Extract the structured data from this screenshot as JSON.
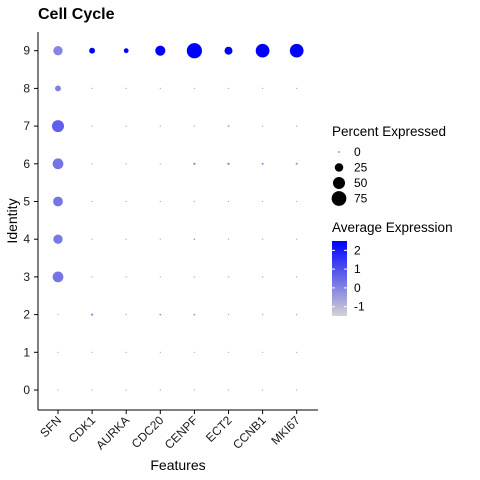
{
  "chart_data": {
    "type": "scatter",
    "title": "Cell Cycle",
    "xlabel": "Features",
    "ylabel": "Identity",
    "categories": [
      "SFN",
      "CDK1",
      "AURKA",
      "CDC20",
      "CENPF",
      "ECT2",
      "CCNB1",
      "MKI67"
    ],
    "identities": [
      "0",
      "1",
      "2",
      "3",
      "4",
      "5",
      "6",
      "7",
      "8",
      "9"
    ],
    "grid": false,
    "legend_position": "right",
    "size_legend": {
      "title": "Percent Expressed",
      "values": [
        0,
        25,
        50,
        75
      ],
      "labels": [
        "0",
        "25",
        "50",
        "75"
      ]
    },
    "color_legend": {
      "title": "Average Expression",
      "min": -1.5,
      "max": 2.5,
      "ticks": [
        2,
        1,
        0,
        -1
      ],
      "tick_labels": [
        "2",
        "1",
        "0",
        "-1"
      ],
      "low_color": "#d3d3d3",
      "high_color": "#0000ff"
    },
    "points": [
      {
        "feature": "SFN",
        "identity": "0",
        "pct": 0.5,
        "avg": -0.6
      },
      {
        "feature": "CDK1",
        "identity": "0",
        "pct": 0.3,
        "avg": -0.4
      },
      {
        "feature": "AURKA",
        "identity": "0",
        "pct": 0.3,
        "avg": -0.3
      },
      {
        "feature": "CDC20",
        "identity": "0",
        "pct": 0.3,
        "avg": -0.4
      },
      {
        "feature": "CENPF",
        "identity": "0",
        "pct": 0.3,
        "avg": -0.5
      },
      {
        "feature": "ECT2",
        "identity": "0",
        "pct": 0.3,
        "avg": -0.5
      },
      {
        "feature": "CCNB1",
        "identity": "0",
        "pct": 0.3,
        "avg": -0.4
      },
      {
        "feature": "MKI67",
        "identity": "0",
        "pct": 0.3,
        "avg": -0.5
      },
      {
        "feature": "SFN",
        "identity": "1",
        "pct": 0.5,
        "avg": -0.6
      },
      {
        "feature": "CDK1",
        "identity": "1",
        "pct": 0.3,
        "avg": -0.4
      },
      {
        "feature": "AURKA",
        "identity": "1",
        "pct": 0.3,
        "avg": -0.3
      },
      {
        "feature": "CDC20",
        "identity": "1",
        "pct": 0.3,
        "avg": -0.4
      },
      {
        "feature": "CENPF",
        "identity": "1",
        "pct": 0.3,
        "avg": -0.5
      },
      {
        "feature": "ECT2",
        "identity": "1",
        "pct": 0.3,
        "avg": -0.5
      },
      {
        "feature": "CCNB1",
        "identity": "1",
        "pct": 0.3,
        "avg": -0.4
      },
      {
        "feature": "MKI67",
        "identity": "1",
        "pct": 0.3,
        "avg": -0.5
      },
      {
        "feature": "SFN",
        "identity": "2",
        "pct": 0.5,
        "avg": -0.6
      },
      {
        "feature": "CDK1",
        "identity": "2",
        "pct": 1.5,
        "avg": 0.2
      },
      {
        "feature": "AURKA",
        "identity": "2",
        "pct": 0.3,
        "avg": -0.3
      },
      {
        "feature": "CDC20",
        "identity": "2",
        "pct": 1.0,
        "avg": -0.1
      },
      {
        "feature": "CENPF",
        "identity": "2",
        "pct": 1.0,
        "avg": -0.2
      },
      {
        "feature": "ECT2",
        "identity": "2",
        "pct": 0.5,
        "avg": -0.4
      },
      {
        "feature": "CCNB1",
        "identity": "2",
        "pct": 0.5,
        "avg": -0.3
      },
      {
        "feature": "MKI67",
        "identity": "2",
        "pct": 0.5,
        "avg": -0.3
      },
      {
        "feature": "SFN",
        "identity": "3",
        "pct": 40,
        "avg": 0.3
      },
      {
        "feature": "CDK1",
        "identity": "3",
        "pct": 0.3,
        "avg": -0.4
      },
      {
        "feature": "AURKA",
        "identity": "3",
        "pct": 0.3,
        "avg": -0.3
      },
      {
        "feature": "CDC20",
        "identity": "3",
        "pct": 0.3,
        "avg": -0.4
      },
      {
        "feature": "CENPF",
        "identity": "3",
        "pct": 0.5,
        "avg": -0.4
      },
      {
        "feature": "ECT2",
        "identity": "3",
        "pct": 0.5,
        "avg": -0.4
      },
      {
        "feature": "CCNB1",
        "identity": "3",
        "pct": 0.3,
        "avg": -0.4
      },
      {
        "feature": "MKI67",
        "identity": "3",
        "pct": 0.3,
        "avg": -0.5
      },
      {
        "feature": "SFN",
        "identity": "4",
        "pct": 30,
        "avg": 0.2
      },
      {
        "feature": "CDK1",
        "identity": "4",
        "pct": 0.3,
        "avg": -0.4
      },
      {
        "feature": "AURKA",
        "identity": "4",
        "pct": 0.3,
        "avg": -0.3
      },
      {
        "feature": "CDC20",
        "identity": "4",
        "pct": 0.3,
        "avg": -0.4
      },
      {
        "feature": "CENPF",
        "identity": "4",
        "pct": 0.8,
        "avg": -0.2
      },
      {
        "feature": "ECT2",
        "identity": "4",
        "pct": 0.5,
        "avg": -0.3
      },
      {
        "feature": "CCNB1",
        "identity": "4",
        "pct": 0.3,
        "avg": -0.4
      },
      {
        "feature": "MKI67",
        "identity": "4",
        "pct": 0.5,
        "avg": -0.4
      },
      {
        "feature": "SFN",
        "identity": "5",
        "pct": 33,
        "avg": 0.3
      },
      {
        "feature": "CDK1",
        "identity": "5",
        "pct": 0.3,
        "avg": -0.4
      },
      {
        "feature": "AURKA",
        "identity": "5",
        "pct": 0.3,
        "avg": -0.3
      },
      {
        "feature": "CDC20",
        "identity": "5",
        "pct": 0.3,
        "avg": -0.4
      },
      {
        "feature": "CENPF",
        "identity": "5",
        "pct": 0.3,
        "avg": -0.5
      },
      {
        "feature": "ECT2",
        "identity": "5",
        "pct": 0.5,
        "avg": -0.4
      },
      {
        "feature": "CCNB1",
        "identity": "5",
        "pct": 0.3,
        "avg": -0.4
      },
      {
        "feature": "MKI67",
        "identity": "5",
        "pct": 0.3,
        "avg": -0.5
      },
      {
        "feature": "SFN",
        "identity": "6",
        "pct": 40,
        "avg": 0.3
      },
      {
        "feature": "CDK1",
        "identity": "6",
        "pct": 0.5,
        "avg": -0.4
      },
      {
        "feature": "AURKA",
        "identity": "6",
        "pct": 0.3,
        "avg": -0.3
      },
      {
        "feature": "CDC20",
        "identity": "6",
        "pct": 0.5,
        "avg": -0.4
      },
      {
        "feature": "CENPF",
        "identity": "6",
        "pct": 2.0,
        "avg": -0.2
      },
      {
        "feature": "ECT2",
        "identity": "6",
        "pct": 2.0,
        "avg": -0.2
      },
      {
        "feature": "CCNB1",
        "identity": "6",
        "pct": 1.5,
        "avg": -0.2
      },
      {
        "feature": "MKI67",
        "identity": "6",
        "pct": 1.5,
        "avg": -0.3
      },
      {
        "feature": "SFN",
        "identity": "7",
        "pct": 50,
        "avg": 0.7
      },
      {
        "feature": "CDK1",
        "identity": "7",
        "pct": 0.3,
        "avg": -0.4
      },
      {
        "feature": "AURKA",
        "identity": "7",
        "pct": 0.3,
        "avg": -0.3
      },
      {
        "feature": "CDC20",
        "identity": "7",
        "pct": 0.3,
        "avg": -0.4
      },
      {
        "feature": "CENPF",
        "identity": "7",
        "pct": 0.3,
        "avg": -0.5
      },
      {
        "feature": "ECT2",
        "identity": "7",
        "pct": 1.0,
        "avg": -0.2
      },
      {
        "feature": "CCNB1",
        "identity": "7",
        "pct": 0.3,
        "avg": -0.4
      },
      {
        "feature": "MKI67",
        "identity": "7",
        "pct": 0.3,
        "avg": -0.5
      },
      {
        "feature": "SFN",
        "identity": "8",
        "pct": 12,
        "avg": 0.1
      },
      {
        "feature": "CDK1",
        "identity": "8",
        "pct": 0.3,
        "avg": -0.4
      },
      {
        "feature": "AURKA",
        "identity": "8",
        "pct": 0.3,
        "avg": -0.3
      },
      {
        "feature": "CDC20",
        "identity": "8",
        "pct": 0.3,
        "avg": -0.4
      },
      {
        "feature": "CENPF",
        "identity": "8",
        "pct": 0.3,
        "avg": -0.5
      },
      {
        "feature": "ECT2",
        "identity": "8",
        "pct": 0.3,
        "avg": -0.5
      },
      {
        "feature": "CCNB1",
        "identity": "8",
        "pct": 0.3,
        "avg": -0.4
      },
      {
        "feature": "MKI67",
        "identity": "8",
        "pct": 0.3,
        "avg": -0.5
      },
      {
        "feature": "SFN",
        "identity": "9",
        "pct": 30,
        "avg": 0.0
      },
      {
        "feature": "CDK1",
        "identity": "9",
        "pct": 12,
        "avg": 2.5
      },
      {
        "feature": "AURKA",
        "identity": "9",
        "pct": 8,
        "avg": 2.5
      },
      {
        "feature": "CDC20",
        "identity": "9",
        "pct": 35,
        "avg": 2.5
      },
      {
        "feature": "CENPF",
        "identity": "9",
        "pct": 80,
        "avg": 2.5
      },
      {
        "feature": "ECT2",
        "identity": "9",
        "pct": 22,
        "avg": 2.5
      },
      {
        "feature": "CCNB1",
        "identity": "9",
        "pct": 65,
        "avg": 2.5
      },
      {
        "feature": "MKI67",
        "identity": "9",
        "pct": 65,
        "avg": 2.5
      }
    ]
  }
}
